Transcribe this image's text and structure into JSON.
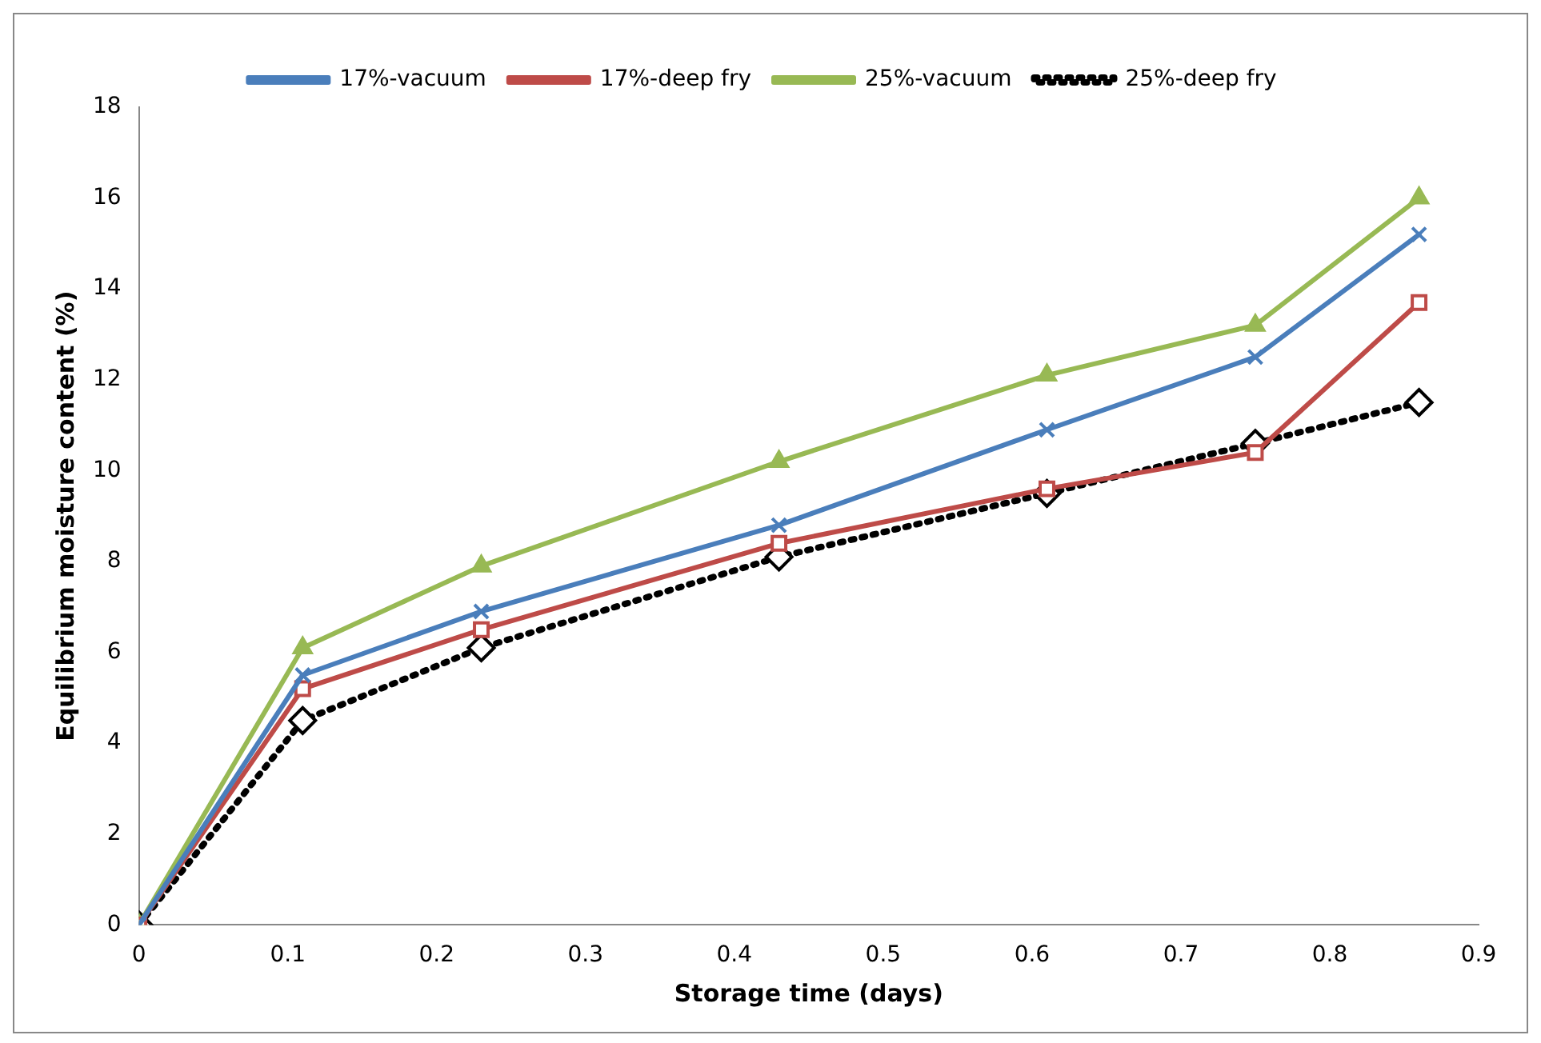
{
  "chart_data": {
    "type": "line",
    "xlabel": "Storage time (days)",
    "ylabel": "Equilibrium moisture content (%)",
    "x": [
      0,
      0.11,
      0.23,
      0.43,
      0.61,
      0.75,
      0.86
    ],
    "xlim": [
      0,
      0.9
    ],
    "xticks": [
      0,
      0.1,
      0.2,
      0.3,
      0.4,
      0.5,
      0.6,
      0.7,
      0.8,
      0.9
    ],
    "ylim": [
      0,
      18
    ],
    "yticks": [
      0,
      2,
      4,
      6,
      8,
      10,
      12,
      14,
      16,
      18
    ],
    "grid": false,
    "legend": "top",
    "series": [
      {
        "name": "17%-vacuum",
        "color": "#4a7ebb",
        "marker": "cross",
        "line_style": "solid",
        "values": [
          0,
          5.5,
          6.9,
          8.8,
          10.9,
          12.5,
          15.2
        ]
      },
      {
        "name": "17%-deep fry",
        "color": "#be4b48",
        "marker": "square",
        "line_style": "solid",
        "values": [
          0,
          5.2,
          6.5,
          8.4,
          9.6,
          10.4,
          13.7
        ]
      },
      {
        "name": "25%-vacuum",
        "color": "#98b954",
        "marker": "triangle",
        "line_style": "solid",
        "values": [
          0,
          6.1,
          7.9,
          10.2,
          12.1,
          13.2,
          16.0
        ]
      },
      {
        "name": "25%-deep fry",
        "color": "#000000",
        "marker": "diamond",
        "line_style": "dotted",
        "values": [
          0,
          4.5,
          6.1,
          8.1,
          9.5,
          10.6,
          11.5
        ]
      }
    ]
  }
}
